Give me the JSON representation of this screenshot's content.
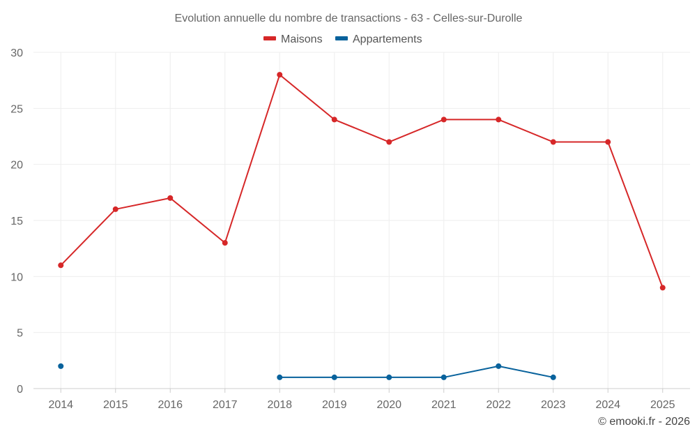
{
  "chart_data": {
    "type": "line",
    "title": "Evolution annuelle du nombre de transactions - 63 - Celles-sur-Durolle",
    "categories": [
      "2014",
      "2015",
      "2016",
      "2017",
      "2018",
      "2019",
      "2020",
      "2021",
      "2022",
      "2023",
      "2024",
      "2025"
    ],
    "ylim": [
      0,
      30
    ],
    "yticks": [
      0,
      5,
      10,
      15,
      20,
      25,
      30
    ],
    "grid": true,
    "legend_position": "top-center",
    "series": [
      {
        "name": "Maisons",
        "color": "#d62728",
        "values": [
          11,
          16,
          17,
          13,
          28,
          24,
          22,
          24,
          24,
          22,
          22,
          9
        ]
      },
      {
        "name": "Appartements",
        "color": "#08629c",
        "values": [
          2,
          null,
          null,
          null,
          1,
          1,
          1,
          1,
          2,
          1,
          null,
          null
        ]
      }
    ],
    "credit": "© emooki.fr - 2026"
  }
}
